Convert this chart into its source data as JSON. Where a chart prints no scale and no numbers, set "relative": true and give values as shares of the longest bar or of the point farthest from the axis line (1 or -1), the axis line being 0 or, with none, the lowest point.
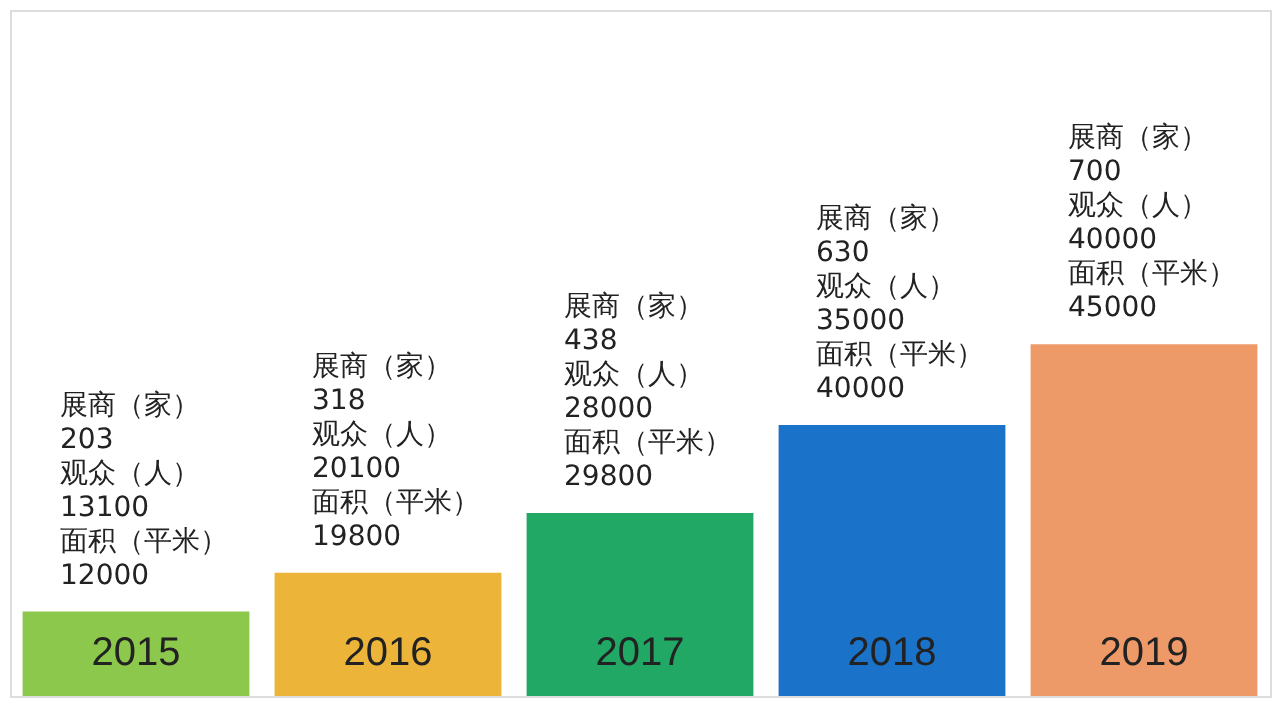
{
  "chart_data": {
    "type": "bar",
    "relative": true,
    "categories": [
      "2015",
      "2016",
      "2017",
      "2018",
      "2019"
    ],
    "values": [
      0.24,
      0.35,
      0.52,
      0.77,
      1
    ],
    "colors": [
      "#8cc84b",
      "#ecb53a",
      "#21a865",
      "#1a73c8",
      "#ee9a68"
    ],
    "annotations": [
      "展商（家）\n203\n观众（人）\n13100\n面积（平米）\n12000",
      "展商（家）\n318\n观众（人）\n20100\n面积（平米）\n19800",
      "展商（家）\n438\n观众（人）\n28000\n面积（平米）\n29800",
      "展商（家）\n630\n观众（人）\n35000\n面积（平米）\n40000",
      "展商（家）\n700\n观众（人）\n40000\n面积（平米）\n45000"
    ]
  }
}
